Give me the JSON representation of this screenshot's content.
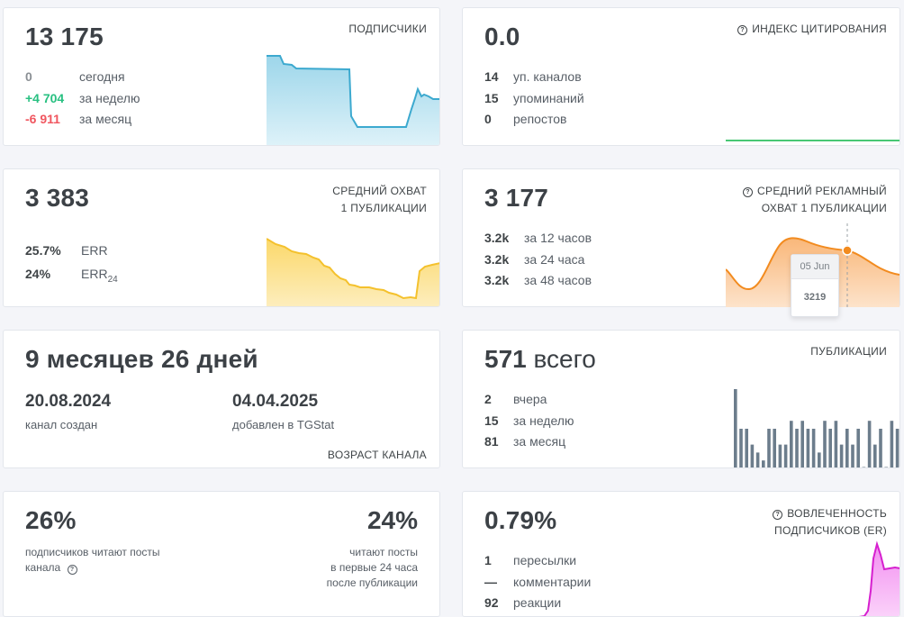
{
  "subscribers": {
    "value": "13 175",
    "caption": "ПОДПИСЧИКИ",
    "rows": [
      {
        "value": "0",
        "label": "сегодня"
      },
      {
        "value": "+4 704",
        "label": "за неделю"
      },
      {
        "value": "-6 911",
        "label": "за месяц"
      }
    ]
  },
  "citation": {
    "value": "0.0",
    "caption": "ИНДЕКС ЦИТИРОВАНИЯ",
    "help_icon": "question-circle-icon",
    "rows": [
      {
        "value": "14",
        "label": "уп. каналов"
      },
      {
        "value": "15",
        "label": "упоминаний"
      },
      {
        "value": "0",
        "label": "репостов"
      }
    ]
  },
  "reach": {
    "value": "3 383",
    "caption_line1": "СРЕДНИЙ ОХВАТ",
    "caption_line2": "1 ПУБЛИКАЦИИ",
    "rows": [
      {
        "value": "25.7%",
        "label": "ERR"
      },
      {
        "value": "24%",
        "label": "ERR",
        "sub": "24"
      }
    ]
  },
  "ad_reach": {
    "value": "3 177",
    "caption_line1": "СРЕДНИЙ РЕКЛАМНЫЙ",
    "caption_line2": "ОХВАТ 1 ПУБЛИКАЦИИ",
    "help_icon": "question-circle-icon",
    "rows": [
      {
        "value": "3.2k",
        "label": "за 12 часов"
      },
      {
        "value": "3.2k",
        "label": "за 24 часа"
      },
      {
        "value": "3.2k",
        "label": "за 48 часов"
      }
    ],
    "tooltip": {
      "date": "05 Jun",
      "value": "3219"
    }
  },
  "age": {
    "value": "9 месяцев 26 дней",
    "created_date": "20.08.2024",
    "created_label": "канал создан",
    "added_date": "04.04.2025",
    "added_label": "добавлен в TGStat",
    "caption": "ВОЗРАСТ КАНАЛА"
  },
  "publications": {
    "value_num": "571",
    "value_word": "всего",
    "caption": "ПУБЛИКАЦИИ",
    "rows": [
      {
        "value": "2",
        "label": "вчера"
      },
      {
        "value": "15",
        "label": "за неделю"
      },
      {
        "value": "81",
        "label": "за месяц"
      }
    ],
    "bars": [
      10,
      5,
      5,
      3,
      2,
      1,
      5,
      5,
      3,
      3,
      6,
      5,
      6,
      5,
      5,
      2,
      6,
      5,
      6,
      3,
      5,
      3,
      5,
      0,
      6,
      3,
      5,
      0,
      6,
      5
    ]
  },
  "read_share": {
    "left_value": "26%",
    "left_label_line1": "подписчиков читают посты",
    "left_label_line2": "канала",
    "help_icon": "question-circle-icon",
    "right_value": "24%",
    "right_label_line1": "читают посты",
    "right_label_line2": "в первые 24 часа",
    "right_label_line3": "после публикации"
  },
  "engagement": {
    "value": "0.79%",
    "caption_line1": "ВОВЛЕЧЕННОСТЬ",
    "caption_line2": "ПОДПИСЧИКОВ (ER)",
    "help_icon": "question-circle-icon",
    "rows": [
      {
        "value": "1",
        "label": "пересылки"
      },
      {
        "value": "—",
        "label": "комментарии"
      },
      {
        "value": "92",
        "label": "реакции"
      }
    ]
  },
  "colors": {
    "blue_line": "#3ca9cf",
    "yellow_line": "#f4c12d",
    "orange_line": "#f28b1f",
    "green_line": "#48c774",
    "bar": "#6c7d8c",
    "magenta_line": "#d61fcf"
  }
}
